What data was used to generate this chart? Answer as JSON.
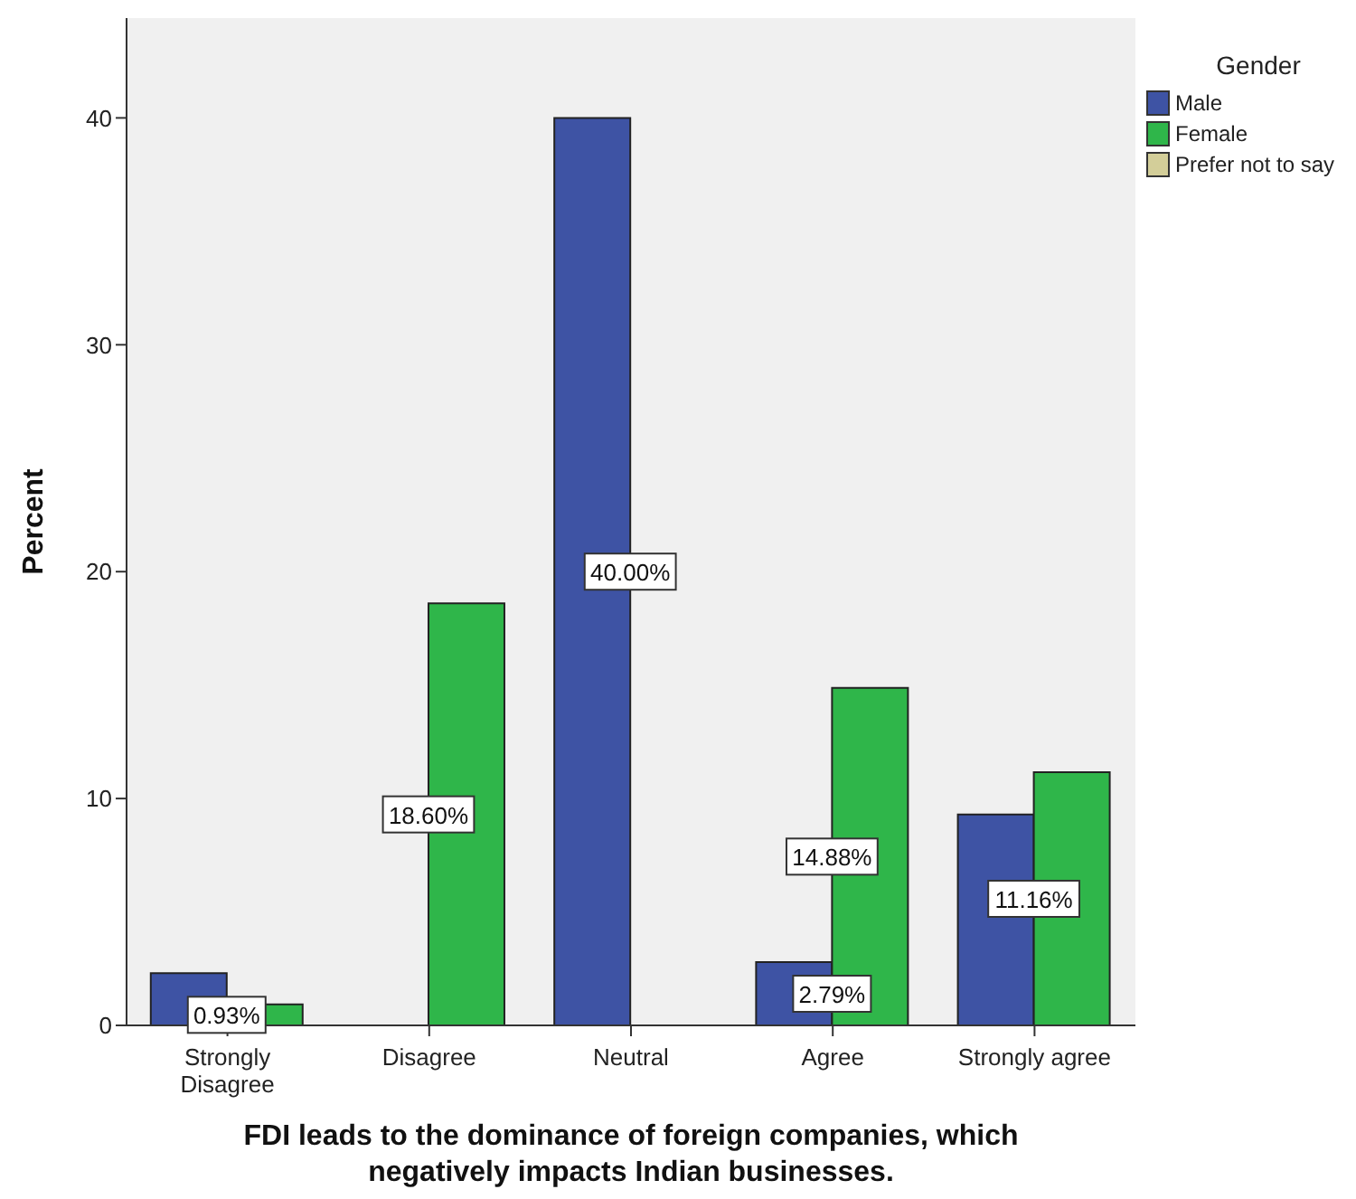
{
  "chart_data": {
    "type": "bar",
    "xlabel": "FDI leads to the dominance of foreign companies, which negatively impacts Indian businesses.",
    "ylabel": "Percent",
    "legend_title": "Gender",
    "categories": [
      "Strongly Disagree",
      "Disagree",
      "Neutral",
      "Agree",
      "Strongly agree"
    ],
    "series": [
      {
        "name": "Male",
        "color": "#3e53a4",
        "values": [
          2.3,
          null,
          40.0,
          2.79,
          9.3
        ],
        "value_labels": [
          null,
          null,
          "40.00%",
          "2.79%",
          null
        ]
      },
      {
        "name": "Female",
        "color": "#2fb64a",
        "values": [
          0.93,
          18.6,
          null,
          14.88,
          11.16
        ],
        "value_labels": [
          "0.93%",
          "18.60%",
          null,
          "14.88%",
          "11.16%"
        ]
      },
      {
        "name": "Prefer not to say",
        "color": "#d3ce99",
        "values": [
          null,
          null,
          null,
          null,
          null
        ]
      }
    ],
    "ylim": [
      0,
      44.4
    ],
    "yticks": [
      0,
      10,
      20,
      30,
      40
    ],
    "grid": false,
    "legend": "top right"
  }
}
